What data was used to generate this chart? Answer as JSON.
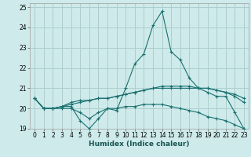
{
  "xlabel": "Humidex (Indice chaleur)",
  "xlim": [
    -0.5,
    23.5
  ],
  "ylim": [
    19,
    25.2
  ],
  "yticks": [
    19,
    20,
    21,
    22,
    23,
    24,
    25
  ],
  "xticks": [
    0,
    1,
    2,
    3,
    4,
    5,
    6,
    7,
    8,
    9,
    10,
    11,
    12,
    13,
    14,
    15,
    16,
    17,
    18,
    19,
    20,
    21,
    22,
    23
  ],
  "background_color": "#ceeaea",
  "grid_color": "#aecece",
  "line_color": "#1a7070",
  "series": [
    {
      "x": [
        0,
        1,
        2,
        3,
        4,
        5,
        6,
        7,
        8,
        9,
        10,
        11,
        12,
        13,
        14,
        15,
        16,
        17,
        18,
        19,
        20,
        21,
        22,
        23
      ],
      "y": [
        20.5,
        20.0,
        20.0,
        20.1,
        20.1,
        19.4,
        19.0,
        19.5,
        20.0,
        19.9,
        21.0,
        22.2,
        22.7,
        24.1,
        24.8,
        22.8,
        22.4,
        21.5,
        21.0,
        20.8,
        20.6,
        20.6,
        19.8,
        19.0
      ]
    },
    {
      "x": [
        0,
        1,
        2,
        3,
        4,
        5,
        6,
        7,
        8,
        9,
        10,
        11,
        12,
        13,
        14,
        15,
        16,
        17,
        18,
        19,
        20,
        21,
        22,
        23
      ],
      "y": [
        20.5,
        20.0,
        20.0,
        20.0,
        20.0,
        19.8,
        19.5,
        19.8,
        20.0,
        20.0,
        20.1,
        20.1,
        20.2,
        20.2,
        20.2,
        20.1,
        20.0,
        19.9,
        19.8,
        19.6,
        19.5,
        19.4,
        19.2,
        19.0
      ]
    },
    {
      "x": [
        0,
        1,
        2,
        3,
        4,
        5,
        6,
        7,
        8,
        9,
        10,
        11,
        12,
        13,
        14,
        15,
        16,
        17,
        18,
        19,
        20,
        21,
        22,
        23
      ],
      "y": [
        20.5,
        20.0,
        20.0,
        20.1,
        20.2,
        20.3,
        20.4,
        20.5,
        20.5,
        20.6,
        20.7,
        20.8,
        20.9,
        21.0,
        21.0,
        21.0,
        21.0,
        21.0,
        21.0,
        21.0,
        20.9,
        20.8,
        20.6,
        20.3
      ]
    },
    {
      "x": [
        0,
        1,
        2,
        3,
        4,
        5,
        6,
        7,
        8,
        9,
        10,
        11,
        12,
        13,
        14,
        15,
        16,
        17,
        18,
        19,
        20,
        21,
        22,
        23
      ],
      "y": [
        20.5,
        20.0,
        20.0,
        20.1,
        20.3,
        20.4,
        20.4,
        20.5,
        20.5,
        20.6,
        20.7,
        20.8,
        20.9,
        21.0,
        21.1,
        21.1,
        21.1,
        21.1,
        21.0,
        21.0,
        20.9,
        20.8,
        20.7,
        20.5
      ]
    }
  ]
}
